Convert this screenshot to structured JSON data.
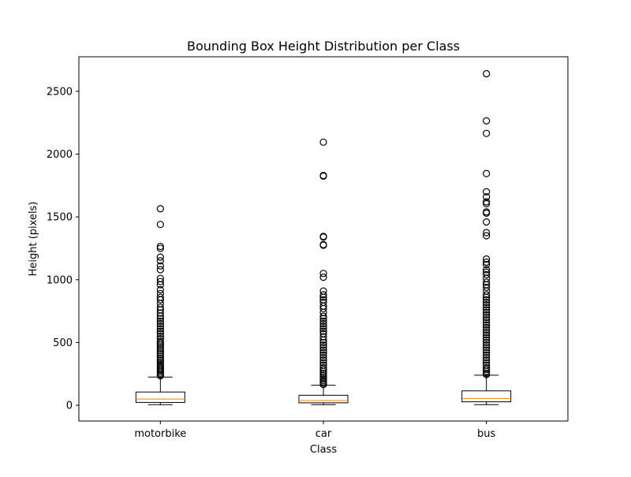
{
  "chart_data": {
    "type": "box",
    "title": "Bounding Box Height Distribution per Class",
    "xlabel": "Class",
    "ylabel": "Height (pixels)",
    "ylim": [
      -125,
      2775
    ],
    "yticks": [
      0,
      500,
      1000,
      1500,
      2000,
      2500
    ],
    "grid": false,
    "categories": [
      "motorbike",
      "car",
      "bus"
    ],
    "boxes": [
      {
        "category": "motorbike",
        "whisker_low": 5,
        "q1": 23,
        "median": 50,
        "q3": 106,
        "whisker_high": 225,
        "outliers": [
          1565,
          1440,
          1265,
          1250,
          1180,
          1150,
          1110,
          1080,
          1010,
          985,
          960,
          920,
          890,
          860,
          840,
          810,
          780,
          760,
          735,
          710,
          690,
          670,
          650,
          630,
          610,
          590,
          570,
          550,
          530,
          510,
          495,
          480,
          465,
          450,
          435,
          420,
          405,
          390,
          375,
          360,
          345,
          330,
          318,
          305,
          292,
          280,
          268,
          256,
          245,
          235
        ]
      },
      {
        "category": "car",
        "whisker_low": 5,
        "q1": 20,
        "median": 38,
        "q3": 80,
        "whisker_high": 160,
        "outliers": [
          2095,
          1830,
          1825,
          1345,
          1340,
          1280,
          1275,
          1050,
          1020,
          910,
          880,
          860,
          840,
          820,
          790,
          770,
          740,
          710,
          690,
          670,
          650,
          630,
          610,
          590,
          570,
          545,
          520,
          500,
          480,
          460,
          440,
          420,
          400,
          380,
          360,
          340,
          320,
          300,
          285,
          270,
          255,
          240,
          225,
          210,
          198,
          186,
          175,
          165
        ]
      },
      {
        "category": "bus",
        "whisker_low": 5,
        "q1": 28,
        "median": 55,
        "q3": 115,
        "whisker_high": 240,
        "outliers": [
          2640,
          2265,
          2165,
          1845,
          1700,
          1660,
          1620,
          1605,
          1540,
          1530,
          1460,
          1375,
          1350,
          1165,
          1140,
          1120,
          1080,
          1060,
          1040,
          1010,
          980,
          960,
          940,
          910,
          880,
          860,
          840,
          820,
          800,
          780,
          760,
          740,
          720,
          700,
          680,
          660,
          640,
          620,
          600,
          580,
          560,
          540,
          520,
          500,
          480,
          460,
          440,
          420,
          400,
          380,
          360,
          340,
          320,
          300,
          285,
          270,
          255,
          245
        ]
      }
    ],
    "colors": {
      "box": "#000000",
      "median": "#ff7f0e",
      "outlier": "#000000",
      "axes": "#000000"
    }
  }
}
